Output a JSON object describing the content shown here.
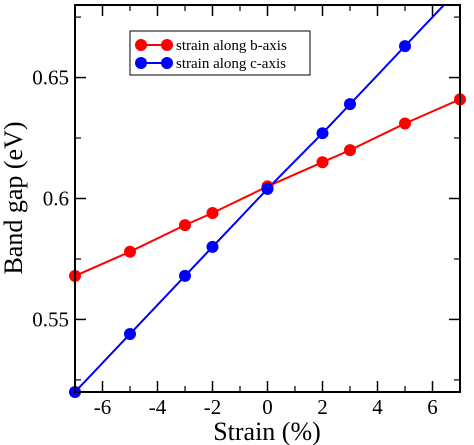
{
  "chart_data": {
    "type": "line",
    "xlabel": "Strain (%)",
    "ylabel": "Band gap (eV)",
    "xlim": [
      -7,
      7
    ],
    "ylim": [
      0.52,
      0.68
    ],
    "xticks": [
      -6,
      -4,
      -2,
      0,
      2,
      4,
      6
    ],
    "xtick_labels": [
      "-6",
      "-4",
      "-2",
      "0",
      "2",
      "4",
      "6"
    ],
    "yticks": [
      0.55,
      0.6,
      0.65
    ],
    "ytick_labels": [
      "0.55",
      "0.6",
      "0.65"
    ],
    "grid": false,
    "legend_position": "top-right",
    "series": [
      {
        "name": "strain along b-axis",
        "color": "#ff0000",
        "x": [
          -7,
          -5,
          -3,
          -2,
          0,
          2,
          3,
          5,
          7
        ],
        "y": [
          0.568,
          0.578,
          0.589,
          0.594,
          0.605,
          0.615,
          0.62,
          0.631,
          0.641
        ]
      },
      {
        "name": "strain along c-axis",
        "color": "#0000ff",
        "x": [
          -7,
          -5,
          -3,
          -2,
          0,
          2,
          3,
          5,
          7
        ],
        "y": [
          0.52,
          0.544,
          0.568,
          0.58,
          0.604,
          0.627,
          0.639,
          0.663,
          0.687
        ]
      }
    ]
  }
}
